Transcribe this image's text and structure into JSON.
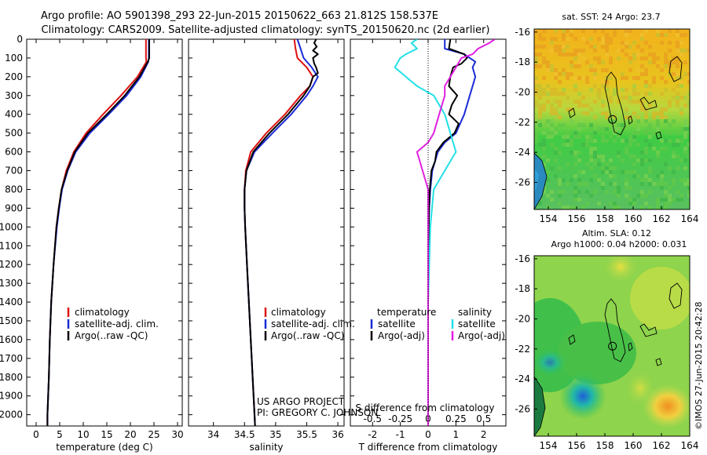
{
  "title_line1": "Argo profile: AO 5901398_293 22-Jun-2015 20150622_663 21.812S 158.537E",
  "title_line2": "Climatology: CARS2009. Satellite-adjusted climatology: synTS_20150620.nc (2d earlier)",
  "project_line1": "US ARGO PROJECT",
  "project_line2": "PI: GREGORY C. JOHNSON",
  "stamp": "©IMOS 27-Jun-2015 20:42:28",
  "colors": {
    "climatology": "#dd1111",
    "satellite": "#1a2bd6",
    "argo": "#000000",
    "sal_satellite": "#22e0e6",
    "sal_argo": "#e020e0"
  },
  "chart_data": [
    {
      "type": "line",
      "panel": "temperature",
      "xlabel": "temperature (deg C)",
      "ylabel": "",
      "xlim": [
        -2,
        31
      ],
      "ylim": [
        2060,
        0
      ],
      "xticks": [
        0,
        5,
        10,
        15,
        20,
        25,
        30
      ],
      "yticks": [
        0,
        100,
        200,
        300,
        400,
        500,
        600,
        700,
        800,
        900,
        1000,
        1100,
        1200,
        1300,
        1400,
        1500,
        1600,
        1700,
        1800,
        1900,
        2000
      ],
      "legend": [
        "climatology",
        "satellite-adj. clim.",
        "Argo(..raw -QC)"
      ],
      "legend_position": "lower-middle",
      "series": [
        {
          "name": "climatology",
          "color": "#dd1111",
          "depth": [
            0,
            50,
            100,
            120,
            200,
            300,
            400,
            500,
            600,
            700,
            800,
            900,
            1000,
            1200,
            1400,
            1600,
            1800,
            2000,
            2060
          ],
          "values": [
            23.3,
            23.3,
            23.3,
            23.4,
            21.5,
            18.0,
            14.2,
            10.6,
            8.0,
            6.4,
            5.4,
            4.8,
            4.3,
            3.7,
            3.2,
            2.9,
            2.7,
            2.4,
            2.4
          ]
        },
        {
          "name": "satellite-adj. clim.",
          "color": "#1a2bd6",
          "depth": [
            0,
            50,
            100,
            120,
            200,
            300,
            400,
            500,
            600,
            700,
            800,
            900,
            1000,
            1200,
            1400,
            1600,
            1800,
            2000,
            2060
          ],
          "values": [
            23.9,
            23.9,
            23.9,
            23.8,
            22.2,
            19.2,
            15.4,
            11.4,
            8.4,
            6.7,
            5.5,
            4.9,
            4.4,
            3.7,
            3.2,
            2.9,
            2.7,
            2.4,
            2.4
          ]
        },
        {
          "name": "Argo(..raw -QC)",
          "color": "#000000",
          "depth": [
            0,
            50,
            100,
            120,
            200,
            300,
            400,
            500,
            600,
            700,
            800,
            900,
            1000,
            1200,
            1400,
            1600,
            1800,
            2000,
            2060
          ],
          "values": [
            24.0,
            24.0,
            24.0,
            23.7,
            21.9,
            18.8,
            15.0,
            11.0,
            8.2,
            6.6,
            5.4,
            4.8,
            4.3,
            3.7,
            3.2,
            2.9,
            2.7,
            2.4,
            2.4
          ]
        }
      ]
    },
    {
      "type": "line",
      "panel": "salinity",
      "xlabel": "salinity",
      "xlim": [
        33.6,
        36.1
      ],
      "ylim": [
        2060,
        0
      ],
      "xticks": [
        34,
        34.5,
        35,
        35.5,
        36
      ],
      "legend": [
        "climatology",
        "satellite-adj. clim.",
        "Argo(..raw -QC)"
      ],
      "legend_position": "lower-middle",
      "series": [
        {
          "name": "climatology",
          "color": "#dd1111",
          "depth": [
            0,
            50,
            100,
            150,
            200,
            250,
            300,
            400,
            500,
            600,
            700,
            800,
            900,
            1000,
            1200,
            1400,
            1600,
            1800,
            2000,
            2060
          ],
          "values": [
            35.3,
            35.32,
            35.35,
            35.5,
            35.6,
            35.55,
            35.4,
            35.15,
            34.85,
            34.6,
            34.52,
            34.5,
            34.5,
            34.51,
            34.54,
            34.57,
            34.6,
            34.63,
            34.66,
            34.67
          ]
        },
        {
          "name": "satellite-adj. clim.",
          "color": "#1a2bd6",
          "depth": [
            0,
            50,
            100,
            150,
            200,
            250,
            300,
            400,
            500,
            600,
            700,
            800,
            900,
            1000,
            1200,
            1400,
            1600,
            1800,
            2000,
            2060
          ],
          "values": [
            35.35,
            35.4,
            35.45,
            35.58,
            35.68,
            35.6,
            35.5,
            35.25,
            34.95,
            34.66,
            34.53,
            34.5,
            34.5,
            34.51,
            34.54,
            34.57,
            34.6,
            34.63,
            34.66,
            34.67
          ]
        },
        {
          "name": "Argo(..raw -QC)",
          "color": "#000000",
          "depth": [
            0,
            20,
            40,
            60,
            80,
            100,
            130,
            150,
            180,
            200,
            250,
            300,
            400,
            500,
            600,
            700,
            800,
            900,
            1000,
            1200,
            1400,
            1600,
            1800,
            2000,
            2060
          ],
          "values": [
            35.65,
            35.62,
            35.66,
            35.6,
            35.68,
            35.6,
            35.62,
            35.65,
            35.68,
            35.6,
            35.55,
            35.45,
            35.2,
            34.9,
            34.64,
            34.53,
            34.5,
            34.5,
            34.51,
            34.54,
            34.57,
            34.6,
            34.63,
            34.66,
            34.67
          ]
        }
      ]
    },
    {
      "type": "line",
      "panel": "difference",
      "xlabel": "T difference from climatology",
      "xlabel2": "S difference from climatology",
      "xlim": [
        -2.8,
        2.8
      ],
      "ylim": [
        2060,
        0
      ],
      "xticks": [
        -2,
        -1,
        0,
        1,
        2
      ],
      "xticks_s": [
        "-0.5",
        "-0.25",
        "0",
        "0.25",
        "0.5"
      ],
      "legend_headers": [
        "temperature",
        "salinity"
      ],
      "legend": [
        "satellite",
        "Argo(-adj)",
        "satellite",
        "Argo(-adj)"
      ],
      "legend_position": "lower-middle",
      "series": [
        {
          "name": "temperature satellite",
          "color": "#1a2bd6",
          "depth": [
            0,
            50,
            80,
            100,
            120,
            150,
            200,
            250,
            300,
            400,
            500,
            550,
            600,
            700,
            800,
            900,
            1000,
            1400,
            1800,
            2060
          ],
          "values": [
            0.6,
            0.6,
            1.3,
            1.5,
            1.7,
            1.6,
            1.7,
            1.6,
            1.5,
            1.3,
            1.0,
            0.6,
            0.35,
            0.15,
            0.08,
            0.04,
            0.02,
            0.0,
            0.0,
            0.0
          ]
        },
        {
          "name": "temperature Argo(-adj)",
          "color": "#000000",
          "depth": [
            0,
            50,
            80,
            100,
            130,
            150,
            200,
            250,
            300,
            350,
            400,
            450,
            500,
            550,
            600,
            650,
            700,
            800,
            900,
            1000,
            1400,
            1800,
            2060
          ],
          "values": [
            0.8,
            0.75,
            1.3,
            1.4,
            1.2,
            0.9,
            0.8,
            0.75,
            1.05,
            0.85,
            0.75,
            1.1,
            0.95,
            0.55,
            0.3,
            0.25,
            0.12,
            0.06,
            0.03,
            0.02,
            0.0,
            0.0,
            0.0
          ]
        },
        {
          "name": "salinity satellite",
          "color": "#22e0e6",
          "depth": [
            0,
            20,
            50,
            80,
            100,
            150,
            200,
            250,
            300,
            400,
            500,
            600,
            700,
            800,
            1000,
            1400,
            1800,
            2060
          ],
          "values": [
            -0.1,
            -0.15,
            -0.1,
            -0.2,
            -0.25,
            -0.3,
            -0.2,
            -0.1,
            0.05,
            0.15,
            0.2,
            0.25,
            0.15,
            0.05,
            0.02,
            0.0,
            0.0,
            0.0
          ]
        },
        {
          "name": "salinity Argo(-adj)",
          "color": "#e020e0",
          "depth": [
            0,
            20,
            50,
            80,
            100,
            150,
            200,
            250,
            300,
            400,
            500,
            550,
            600,
            700,
            800,
            1000,
            1400,
            1800,
            2060
          ],
          "values": [
            0.6,
            0.55,
            0.45,
            0.4,
            0.3,
            0.25,
            0.2,
            0.15,
            0.15,
            0.1,
            0.05,
            0.0,
            -0.1,
            -0.05,
            0.0,
            0.0,
            0.0,
            0.0,
            0.0
          ]
        }
      ]
    },
    {
      "type": "heatmap",
      "panel": "sst-map",
      "title": "sat. SST: 24  Argo: 23.7",
      "xlim": [
        153,
        164
      ],
      "ylim": [
        -27.8,
        -15.8
      ],
      "xticks": [
        154,
        156,
        158,
        160,
        162,
        164
      ],
      "yticks": [
        -16,
        -18,
        -20,
        -22,
        -24,
        -26
      ],
      "argo_position": [
        158.537,
        -21.812
      ]
    },
    {
      "type": "heatmap",
      "panel": "sla-map",
      "title_line1": "Altim. SLA: 0.12",
      "title_line2": "Argo h1000: 0.04 h2000: 0.031",
      "xlim": [
        153,
        164
      ],
      "ylim": [
        -27.8,
        -15.8
      ],
      "xticks": [
        154,
        156,
        158,
        160,
        162,
        164
      ],
      "yticks": [
        -16,
        -18,
        -20,
        -22,
        -24,
        -26
      ],
      "argo_position": [
        158.537,
        -21.812
      ]
    }
  ]
}
